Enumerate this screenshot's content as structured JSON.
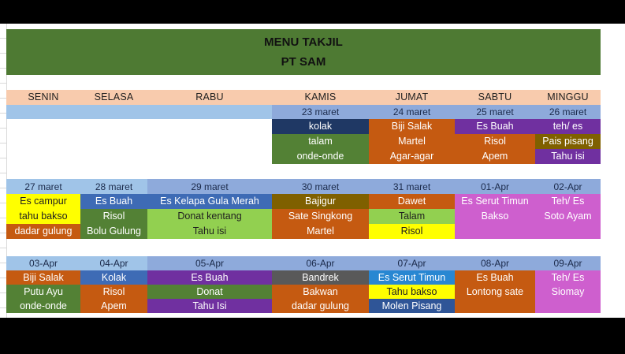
{
  "title": {
    "line1": "MENU TAKJIL",
    "line2": "PT SAM"
  },
  "day_headers": [
    "SENIN",
    "SELASA",
    "RABU",
    "KAMIS",
    "JUMAT",
    "SABTU",
    "MINGGU"
  ],
  "palette": {
    "header_green": "#4E7A33",
    "day_header_bg": "#F8CBAD",
    "date_light": "#A0C4E8",
    "date_dark": "#8EAADB",
    "navy": "#1F3864",
    "green": "#538135",
    "orange": "#C55A11",
    "purple": "#7030A0",
    "olive": "#7F6000",
    "yellow": "#FFFF00",
    "blue": "#3E6BB5",
    "light_green": "#92D050",
    "magenta": "#CE5FCE",
    "bright_blue": "#2887D2",
    "dark_blue": "#2F5597",
    "gray": "#595959",
    "black_text": "#1F1F1F",
    "date_text": "#1B2A4A",
    "letterbox": "#000000"
  },
  "weeks": [
    {
      "columns": [
        {
          "date": "",
          "shade": "light",
          "items": []
        },
        {
          "date": "",
          "shade": "light",
          "items": []
        },
        {
          "date": "",
          "shade": "light",
          "items": []
        },
        {
          "date": "23 maret",
          "shade": "dark",
          "items": [
            {
              "text": "kolak",
              "bg": "navy",
              "fg": "white"
            },
            {
              "text": "talam",
              "bg": "green",
              "fg": "white"
            },
            {
              "text": "onde-onde",
              "bg": "green",
              "fg": "white"
            }
          ]
        },
        {
          "date": "24 maret",
          "shade": "dark",
          "items": [
            {
              "text": "Biji Salak",
              "bg": "orange",
              "fg": "white"
            },
            {
              "text": "Martel",
              "bg": "orange",
              "fg": "white"
            },
            {
              "text": "Agar-agar",
              "bg": "orange",
              "fg": "white"
            }
          ]
        },
        {
          "date": "25 maret",
          "shade": "dark",
          "items": [
            {
              "text": "Es Buah",
              "bg": "purple",
              "fg": "white"
            },
            {
              "text": "Risol",
              "bg": "orange",
              "fg": "white"
            },
            {
              "text": "Apem",
              "bg": "orange",
              "fg": "white"
            }
          ]
        },
        {
          "date": "26 maret",
          "shade": "dark",
          "items": [
            {
              "text": "teh/ es",
              "bg": "purple",
              "fg": "white"
            },
            {
              "text": "Pais pisang",
              "bg": "olive",
              "fg": "white"
            },
            {
              "text": "Tahu isi",
              "bg": "purple",
              "fg": "white"
            }
          ]
        }
      ]
    },
    {
      "columns": [
        {
          "date": "27 maret",
          "shade": "light",
          "items": [
            {
              "text": "Es campur",
              "bg": "yellow",
              "fg": "black"
            },
            {
              "text": "tahu bakso",
              "bg": "yellow",
              "fg": "black"
            },
            {
              "text": "dadar gulung",
              "bg": "orange",
              "fg": "white"
            }
          ]
        },
        {
          "date": "28 maret",
          "shade": "light",
          "items": [
            {
              "text": "Es Buah",
              "bg": "blue",
              "fg": "white"
            },
            {
              "text": "Risol",
              "bg": "green",
              "fg": "white"
            },
            {
              "text": "Bolu Gulung",
              "bg": "green",
              "fg": "white"
            }
          ]
        },
        {
          "date": "29 maret",
          "shade": "dark",
          "items": [
            {
              "text": "Es Kelapa Gula Merah",
              "bg": "blue",
              "fg": "white"
            },
            {
              "text": "Donat kentang",
              "bg": "light_green",
              "fg": "black"
            },
            {
              "text": "Tahu isi",
              "bg": "light_green",
              "fg": "black"
            }
          ]
        },
        {
          "date": "30 maret",
          "shade": "dark",
          "items": [
            {
              "text": "Bajigur",
              "bg": "olive",
              "fg": "white"
            },
            {
              "text": "Sate Singkong",
              "bg": "orange",
              "fg": "white"
            },
            {
              "text": "Martel",
              "bg": "orange",
              "fg": "white"
            }
          ]
        },
        {
          "date": "31 maret",
          "shade": "dark",
          "items": [
            {
              "text": "Dawet",
              "bg": "orange",
              "fg": "white"
            },
            {
              "text": "Talam",
              "bg": "light_green",
              "fg": "black"
            },
            {
              "text": "Risol",
              "bg": "yellow",
              "fg": "black"
            }
          ]
        },
        {
          "date": "01-Apr",
          "shade": "dark",
          "items": [
            {
              "text": "Es Serut Timun",
              "bg": "magenta",
              "fg": "white"
            },
            {
              "text": "Bakso",
              "bg": "magenta",
              "fg": "white"
            },
            {
              "text": "",
              "bg": "magenta",
              "fg": "white"
            }
          ]
        },
        {
          "date": "02-Apr",
          "shade": "dark",
          "items": [
            {
              "text": "Teh/ Es",
              "bg": "magenta",
              "fg": "white"
            },
            {
              "text": "Soto Ayam",
              "bg": "magenta",
              "fg": "white"
            },
            {
              "text": "",
              "bg": "magenta",
              "fg": "white"
            }
          ]
        }
      ]
    },
    {
      "columns": [
        {
          "date": "03-Apr",
          "shade": "light",
          "items": [
            {
              "text": "Biji Salak",
              "bg": "orange",
              "fg": "white"
            },
            {
              "text": "Putu Ayu",
              "bg": "green",
              "fg": "white"
            },
            {
              "text": "onde-onde",
              "bg": "green",
              "fg": "white"
            }
          ]
        },
        {
          "date": "04-Apr",
          "shade": "light",
          "items": [
            {
              "text": "Kolak",
              "bg": "blue",
              "fg": "white"
            },
            {
              "text": "Risol",
              "bg": "orange",
              "fg": "white"
            },
            {
              "text": "Apem",
              "bg": "orange",
              "fg": "white"
            }
          ]
        },
        {
          "date": "05-Apr",
          "shade": "dark",
          "items": [
            {
              "text": "Es Buah",
              "bg": "purple",
              "fg": "white"
            },
            {
              "text": "Donat",
              "bg": "green",
              "fg": "white"
            },
            {
              "text": "Tahu Isi",
              "bg": "purple",
              "fg": "white"
            }
          ]
        },
        {
          "date": "06-Apr",
          "shade": "dark",
          "items": [
            {
              "text": "Bandrek",
              "bg": "gray",
              "fg": "white"
            },
            {
              "text": "Bakwan",
              "bg": "orange",
              "fg": "white"
            },
            {
              "text": "dadar gulung",
              "bg": "orange",
              "fg": "white"
            }
          ]
        },
        {
          "date": "07-Apr",
          "shade": "dark",
          "items": [
            {
              "text": "Es Serut Timun",
              "bg": "bright_blue",
              "fg": "white"
            },
            {
              "text": "Tahu bakso",
              "bg": "yellow",
              "fg": "black"
            },
            {
              "text": "Molen Pisang",
              "bg": "dark_blue",
              "fg": "white"
            }
          ]
        },
        {
          "date": "08-Apr",
          "shade": "dark",
          "items": [
            {
              "text": "Es Buah",
              "bg": "orange",
              "fg": "white"
            },
            {
              "text": "Lontong sate",
              "bg": "orange",
              "fg": "white"
            },
            {
              "text": "",
              "bg": "orange",
              "fg": "white"
            }
          ]
        },
        {
          "date": "09-Apr",
          "shade": "dark",
          "items": [
            {
              "text": "Teh/ Es",
              "bg": "magenta",
              "fg": "white"
            },
            {
              "text": "Siomay",
              "bg": "magenta",
              "fg": "white"
            },
            {
              "text": "",
              "bg": "magenta",
              "fg": "white"
            }
          ]
        }
      ]
    }
  ]
}
